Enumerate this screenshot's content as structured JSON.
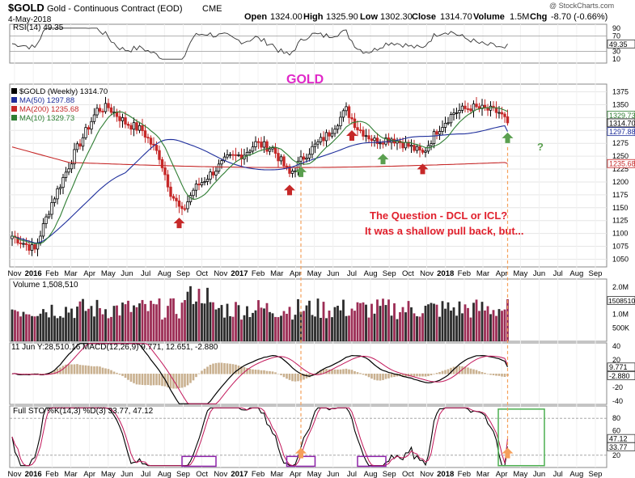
{
  "header": {
    "symbol": "$GOLD",
    "name": "Gold - Continuous Contract (EOD)",
    "exchange": "CME",
    "date": "4-May-2018",
    "open_label": "Open",
    "open": "1324.00",
    "high_label": "High",
    "high": "1325.90",
    "low_label": "Low",
    "low": "1302.30",
    "close_label": "Close",
    "close": "1314.70",
    "volume_label": "Volume",
    "volume": "1.5M",
    "chg_label": "Chg",
    "chg": "-8.70 (-0.66%)",
    "watermark": "@ StockCharts.com"
  },
  "chart_data": {
    "type": "candlestick",
    "title": "GOLD",
    "x_tick_labels": [
      "Nov",
      "2016",
      "Feb",
      "Mar",
      "Apr",
      "May",
      "Jun",
      "Jul",
      "Aug",
      "Sep",
      "Oct",
      "Nov",
      "2017",
      "Feb",
      "Mar",
      "Apr",
      "May",
      "Jun",
      "Jul",
      "Aug",
      "Sep",
      "Oct",
      "Nov",
      "2018",
      "Feb",
      "Mar",
      "Apr",
      "May",
      "Jun",
      "Jul",
      "Aug",
      "Sep"
    ],
    "price_panel": {
      "legend": [
        {
          "text": "$GOLD (Weekly) 1314.70",
          "color": "#000000"
        },
        {
          "text": "MA(50) 1297.88",
          "color": "#1f2f9c"
        },
        {
          "text": "MA(200) 1235.68",
          "color": "#c62828"
        },
        {
          "text": "MA(10) 1329.73",
          "color": "#2e7d32"
        }
      ],
      "ylim": [
        1035,
        1390
      ],
      "y_ticks": [
        1050,
        1075,
        1100,
        1125,
        1150,
        1175,
        1200,
        1225,
        1250,
        1275,
        1300,
        1325,
        1350,
        1375
      ],
      "y_tick_labels": [
        "1050",
        "1075",
        "1100",
        "1125",
        "1150",
        "1175",
        "1200",
        "1225",
        "1250",
        "1275",
        "1300",
        "1325",
        "1350",
        "1375"
      ],
      "tags": [
        {
          "text": "1329.73",
          "value": 1329.73,
          "color": "#2e7d32"
        },
        {
          "text": "1314.70",
          "value": 1314.7,
          "color": "#000000"
        },
        {
          "text": "1297.88",
          "value": 1297.88,
          "color": "#1f2f9c"
        },
        {
          "text": "1235.68",
          "value": 1235.68,
          "color": "#c62828"
        }
      ],
      "annotation_lines": [
        "The Question -  DCL or ICL?",
        "It was a shallow pull back, but..."
      ],
      "question_mark": "?",
      "red_arrows_at_week": [
        59,
        98,
        120,
        145
      ],
      "green_arrows_at_week": [
        102,
        131,
        175
      ],
      "orange_arrows_at_week": [
        102,
        175
      ]
    },
    "rsi_panel": {
      "label": "RSI(14) 49.35",
      "ylim": [
        0,
        100
      ],
      "y_ticks": [
        10,
        30,
        50,
        70,
        90
      ],
      "y_tick_labels": [
        "10",
        "30",
        "50",
        "70",
        "90"
      ],
      "current_tag": "49.35"
    },
    "volume_panel": {
      "label": "Volume 1,508,510",
      "y_tick_labels": [
        "2.0M",
        "1.5M",
        "1.0M",
        "500K"
      ],
      "y_tick_values": [
        2000000,
        1500000,
        1000000,
        500000
      ],
      "current_tag": "1508510"
    },
    "macd_panel": {
      "label": "11 Jun Y:28,510.16 MACD(12,26,9) 9.771, 12.651, -2.880",
      "macd_label": "9.771",
      "signal_label": "12.651",
      "hist_label": "-2.880",
      "ylim": [
        -45,
        45
      ],
      "y_ticks": [
        40,
        20,
        0,
        -20,
        -40
      ],
      "y_tick_labels": [
        "40",
        "20",
        "0",
        "-20",
        "-40"
      ],
      "tags": [
        {
          "text": "9.771",
          "value": 9.771
        },
        {
          "text": "-2.880",
          "value": -2.88
        }
      ]
    },
    "sto_panel": {
      "label": "Full STO %K(14,3) %D(3) 33.77, 47.12",
      "ylim": [
        0,
        100
      ],
      "y_ticks": [
        80,
        60,
        40,
        20
      ],
      "y_tick_labels": [
        "80",
        "60",
        "40",
        "20"
      ],
      "tags": [
        {
          "text": "47.12",
          "value": 47.12
        },
        {
          "text": "33.77",
          "value": 33.77
        }
      ],
      "purple_boxes_weeks": [
        [
          60,
          72
        ],
        [
          97,
          107
        ],
        [
          122,
          132
        ]
      ],
      "green_box_weeks": [
        174,
        188
      ]
    }
  },
  "colors": {
    "up": "#000000",
    "down": "#c62828",
    "ma50": "#1f2f9c",
    "ma200": "#c62828",
    "ma10": "#2e7d32",
    "title": "#e028c8",
    "annotation": "#e0202c",
    "vol_up": "#2b2b2b",
    "vol_down": "#9c2d55",
    "macd_hist": "#c9b08f",
    "orange": "#f5a05a",
    "purple": "#8e24aa",
    "green_box": "#4caf50",
    "green_arrow": "#5a9f4f"
  }
}
